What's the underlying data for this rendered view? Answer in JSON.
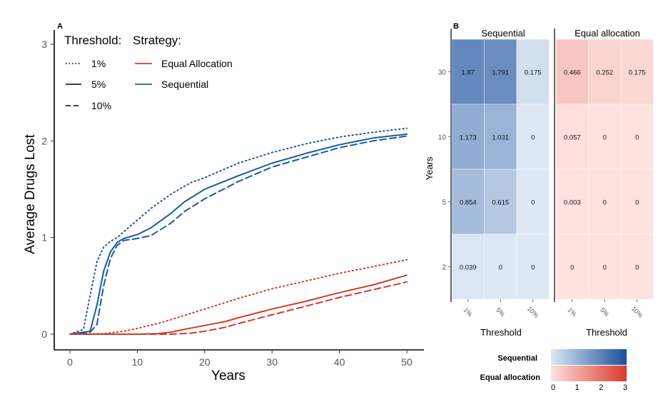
{
  "chart_data": [
    {
      "panel": "A",
      "type": "line",
      "xlabel": "Years",
      "ylabel": "Average Drugs Lost",
      "xlim": [
        0,
        50
      ],
      "ylim": [
        0,
        3
      ],
      "xticks": [
        0,
        10,
        20,
        30,
        40,
        50
      ],
      "yticks": [
        0,
        1,
        2,
        3
      ],
      "grid": false,
      "legend": {
        "threshold_title": "Threshold:",
        "strategy_title": "Strategy:",
        "threshold_items": [
          {
            "label": "1%",
            "dash": "dotted"
          },
          {
            "label": "5%",
            "dash": "solid"
          },
          {
            "label": "10%",
            "dash": "dashed"
          }
        ],
        "strategy_items": [
          {
            "label": "Equal Allocation",
            "color": "#d03b2c"
          },
          {
            "label": "Sequential",
            "color": "#1c5a9e"
          }
        ]
      },
      "series": [
        {
          "name": "Sequential 1%",
          "strategy": "Sequential",
          "threshold": "1%",
          "color": "#1c5a9e",
          "dash": "dotted",
          "x": [
            0,
            2,
            3,
            4,
            5,
            6,
            7,
            8,
            10,
            12,
            15,
            18,
            20,
            25,
            30,
            35,
            40,
            45,
            50
          ],
          "y": [
            0,
            0.05,
            0.4,
            0.75,
            0.9,
            0.96,
            1.0,
            1.06,
            1.18,
            1.3,
            1.45,
            1.57,
            1.62,
            1.77,
            1.88,
            1.97,
            2.04,
            2.09,
            2.13
          ]
        },
        {
          "name": "Sequential 5%",
          "strategy": "Sequential",
          "threshold": "5%",
          "color": "#1c5a9e",
          "dash": "solid",
          "x": [
            0,
            3,
            4,
            5,
            6,
            7,
            8,
            10,
            12,
            15,
            17,
            20,
            25,
            30,
            35,
            40,
            45,
            50
          ],
          "y": [
            0,
            0.03,
            0.3,
            0.65,
            0.85,
            0.95,
            0.99,
            1.03,
            1.1,
            1.25,
            1.37,
            1.5,
            1.64,
            1.77,
            1.87,
            1.96,
            2.03,
            2.07
          ]
        },
        {
          "name": "Sequential 10%",
          "strategy": "Sequential",
          "threshold": "10%",
          "color": "#1c5a9e",
          "dash": "dashed",
          "x": [
            0,
            3,
            4,
            5,
            6,
            7,
            8,
            10,
            12,
            15,
            17,
            20,
            25,
            30,
            35,
            40,
            45,
            50
          ],
          "y": [
            0,
            0.02,
            0.1,
            0.5,
            0.78,
            0.92,
            0.97,
            0.99,
            1.02,
            1.15,
            1.27,
            1.4,
            1.58,
            1.73,
            1.83,
            1.93,
            2.0,
            2.05
          ]
        },
        {
          "name": "Equal Allocation 1%",
          "strategy": "Equal Allocation",
          "threshold": "1%",
          "color": "#d03b2c",
          "dash": "dotted",
          "x": [
            0,
            5,
            8,
            10,
            13,
            15,
            20,
            25,
            30,
            35,
            40,
            45,
            50
          ],
          "y": [
            0,
            0.005,
            0.03,
            0.06,
            0.11,
            0.15,
            0.26,
            0.37,
            0.47,
            0.55,
            0.63,
            0.7,
            0.77
          ]
        },
        {
          "name": "Equal Allocation 5%",
          "strategy": "Equal Allocation",
          "threshold": "5%",
          "color": "#d03b2c",
          "dash": "solid",
          "x": [
            0,
            10,
            13,
            15,
            17,
            20,
            23,
            25,
            30,
            35,
            40,
            45,
            50
          ],
          "y": [
            0,
            0.0,
            0.005,
            0.02,
            0.05,
            0.09,
            0.13,
            0.17,
            0.26,
            0.34,
            0.43,
            0.51,
            0.61
          ]
        },
        {
          "name": "Equal Allocation 10%",
          "strategy": "Equal Allocation",
          "threshold": "10%",
          "color": "#d03b2c",
          "dash": "dashed",
          "x": [
            0,
            15,
            18,
            20,
            23,
            25,
            30,
            35,
            40,
            45,
            50
          ],
          "y": [
            0,
            0.0,
            0.01,
            0.03,
            0.07,
            0.11,
            0.2,
            0.29,
            0.38,
            0.46,
            0.54
          ]
        }
      ]
    },
    {
      "panel": "B",
      "type": "heatmap",
      "ylabel": "Years",
      "rows": [
        "30",
        "10",
        "5",
        "2"
      ],
      "columns": [
        "1%",
        "5%",
        "10%"
      ],
      "panels": [
        {
          "title": "Sequential",
          "xlabel": "Threshold",
          "scale": "blue",
          "values": [
            [
              1.87,
              1.791,
              0.175
            ],
            [
              1.173,
              1.031,
              0
            ],
            [
              0.854,
              0.615,
              0
            ],
            [
              0.039,
              0,
              0
            ]
          ],
          "labels": [
            [
              "1.87",
              "1.791",
              "0.175"
            ],
            [
              "1.173",
              "1.031",
              "0"
            ],
            [
              "0.854",
              "0.615",
              "0"
            ],
            [
              "0.039",
              "0",
              "0"
            ]
          ]
        },
        {
          "title": "Equal allocation",
          "xlabel": "Threshold",
          "scale": "red",
          "values": [
            [
              0.466,
              0.252,
              0.175
            ],
            [
              0.057,
              0,
              0
            ],
            [
              0.003,
              0,
              0
            ],
            [
              0,
              0,
              0
            ]
          ],
          "labels": [
            [
              "0.466",
              "0.252",
              "0.175"
            ],
            [
              "0.057",
              "0",
              "0"
            ],
            [
              "0.003",
              "0",
              "0"
            ],
            [
              "0",
              "0",
              "0"
            ]
          ]
        }
      ],
      "colorbar": {
        "labels": [
          "Sequential",
          "Equal allocation"
        ],
        "range": [
          0,
          3
        ],
        "ticks": [
          "0",
          "1",
          "2",
          "3"
        ],
        "blue_low": "#dde8f4",
        "blue_high": "#1a4f9c",
        "red_low": "#fde2df",
        "red_high": "#d93a2a"
      }
    }
  ],
  "panel_labels": {
    "a": "A",
    "b": "B"
  }
}
